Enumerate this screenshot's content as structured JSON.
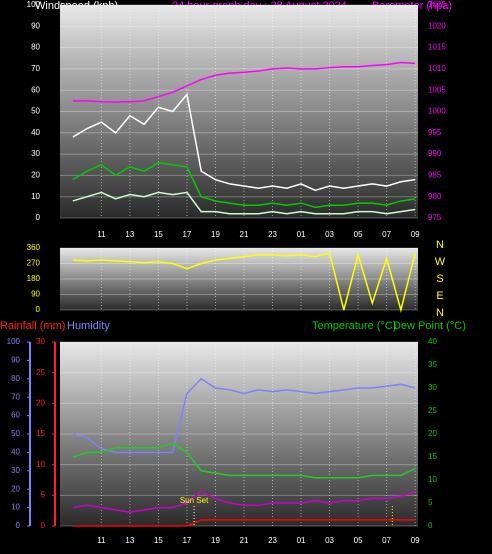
{
  "chart_data": [
    {
      "type": "line",
      "title": "24 hour graph day : 28 August 2024",
      "y_label": "Windspeed (kph)",
      "y2_label": "Barometer (hpa)",
      "x": [
        9,
        10,
        11,
        12,
        13,
        14,
        15,
        16,
        17,
        18,
        19,
        20,
        21,
        22,
        23,
        24,
        25,
        26,
        27,
        28,
        29,
        30,
        31,
        32,
        33
      ],
      "xlim": [
        8.1,
        33.2
      ],
      "xticks": [
        11,
        13,
        15,
        17,
        19,
        21,
        23,
        {
          "value": 25,
          "label": "01"
        },
        {
          "value": 27,
          "label": "03"
        },
        {
          "value": 29,
          "label": "05"
        },
        {
          "value": 31,
          "label": "07"
        },
        {
          "value": 33,
          "label": "09"
        }
      ],
      "ylim": [
        0,
        100
      ],
      "yticks": [
        0,
        10,
        20,
        30,
        40,
        50,
        60,
        70,
        80,
        90,
        100
      ],
      "y2lim": [
        975,
        1025
      ],
      "y2ticks": [
        975,
        980,
        985,
        990,
        995,
        1000,
        1005,
        1010,
        1015,
        1020,
        1025
      ],
      "axis_colors": {
        "y": "#ffffff",
        "y2": "#ff00ff"
      },
      "grid": true,
      "series": [
        {
          "color": "#ffffff",
          "values": [
            38,
            42,
            45,
            40,
            48,
            44,
            52,
            50,
            58,
            22,
            18,
            16,
            15,
            14,
            15,
            14,
            16,
            13,
            15,
            14,
            15,
            16,
            15,
            17,
            18
          ]
        },
        {
          "color": "#00cc00",
          "values": [
            18,
            22,
            25,
            20,
            24,
            22,
            26,
            25,
            24,
            10,
            8,
            7,
            6,
            6,
            7,
            6,
            7,
            5,
            6,
            6,
            7,
            7,
            6,
            8,
            9
          ]
        },
        {
          "color": "#ccffcc",
          "values": [
            8,
            10,
            12,
            9,
            11,
            10,
            12,
            11,
            12,
            3,
            3,
            2,
            2,
            2,
            3,
            2,
            3,
            2,
            2,
            2,
            3,
            3,
            2,
            3,
            4
          ]
        },
        {
          "color": "#ff00ff",
          "axis": "y2",
          "values": [
            1002.5,
            1002.5,
            1002.3,
            1002.2,
            1002.3,
            1002.5,
            1003.5,
            1004.5,
            1006,
            1007.5,
            1008.5,
            1009,
            1009.2,
            1009.5,
            1010,
            1010.2,
            1010,
            1010,
            1010.3,
            1010.5,
            1010.5,
            1010.8,
            1011,
            1011.5,
            1011.3
          ]
        }
      ]
    },
    {
      "type": "line",
      "x": [
        9,
        10,
        11,
        12,
        13,
        14,
        15,
        16,
        17,
        18,
        19,
        20,
        21,
        22,
        23,
        24,
        25,
        26,
        27,
        28,
        29,
        30,
        31,
        32,
        33
      ],
      "xlim": [
        8.1,
        33.2
      ],
      "xticks": [
        11,
        13,
        15,
        17,
        19,
        21,
        23,
        25,
        27,
        29,
        31,
        33
      ],
      "ylim": [
        0,
        360
      ],
      "yticks": [
        0,
        90,
        180,
        270,
        360
      ],
      "axis_colors": {
        "y": "#ffff00"
      },
      "grid": true,
      "compass_labels": [
        "N",
        "W",
        "S",
        "E",
        "N"
      ],
      "series": [
        {
          "color": "#ffff00",
          "values": [
            290,
            285,
            290,
            285,
            280,
            275,
            280,
            270,
            240,
            270,
            290,
            300,
            310,
            320,
            320,
            315,
            320,
            310,
            330,
            0,
            320,
            40,
            300,
            0,
            330
          ]
        }
      ]
    },
    {
      "type": "line",
      "y_label": "Rainfall (mm)",
      "y3_label": "Humidity",
      "y2_label": "Temperature (°C)",
      "y2_label_b": "Dew Point (°C)",
      "x": [
        9,
        10,
        11,
        12,
        13,
        14,
        15,
        16,
        17,
        18,
        19,
        20,
        21,
        22,
        23,
        24,
        25,
        26,
        27,
        28,
        29,
        30,
        31,
        32,
        33
      ],
      "xlim": [
        8.1,
        33.2
      ],
      "xticks": [
        11,
        13,
        15,
        17,
        19,
        21,
        23,
        {
          "value": 25,
          "label": "01"
        },
        {
          "value": 27,
          "label": "03"
        },
        {
          "value": 29,
          "label": "05"
        },
        {
          "value": 31,
          "label": "07"
        },
        {
          "value": 33,
          "label": "09"
        }
      ],
      "ylim": [
        0,
        30
      ],
      "yticks": [
        0,
        5,
        10,
        15,
        20,
        25,
        30
      ],
      "y3lim": [
        0,
        100
      ],
      "y3ticks": [
        0,
        10,
        20,
        30,
        40,
        50,
        60,
        70,
        80,
        90,
        100
      ],
      "y2lim": [
        0,
        40
      ],
      "y2ticks": [
        0,
        5,
        10,
        15,
        20,
        25,
        30,
        35,
        40
      ],
      "axis_colors": {
        "y": "#ff2020",
        "y2": "#00cc00",
        "y3": "#8080ff"
      },
      "grid": true,
      "sunset": {
        "label": "Sun Set",
        "x": 17.5
      },
      "sunrise_x": 31.4,
      "series": [
        {
          "color": "#ff0000",
          "values": [
            0,
            0,
            0,
            0,
            0,
            0,
            0,
            0,
            0,
            1,
            1,
            1,
            1,
            1,
            1,
            1,
            1,
            1,
            1,
            1,
            1,
            1,
            1,
            1,
            1
          ]
        },
        {
          "color": "#8080ff",
          "axis": "y3",
          "values": [
            50,
            48,
            42,
            40,
            40,
            40,
            40,
            40,
            72,
            80,
            75,
            74,
            72,
            74,
            73,
            74,
            73,
            72,
            73,
            74,
            75,
            75,
            76,
            77,
            75
          ]
        },
        {
          "color": "#22cc22",
          "axis": "y2",
          "values": [
            15,
            16,
            16,
            17,
            17,
            17,
            17,
            18,
            16,
            12,
            11.5,
            11,
            11,
            11,
            11,
            11,
            11,
            10.5,
            10.5,
            10.5,
            10.5,
            11,
            11,
            11,
            12.5
          ]
        },
        {
          "color": "#cc00cc",
          "axis": "y2",
          "values": [
            4,
            4.5,
            4,
            3.5,
            3,
            3.5,
            4,
            4,
            5,
            7.5,
            6,
            5,
            4.5,
            4.5,
            5,
            5,
            5,
            5.5,
            5,
            5.5,
            5.5,
            6,
            6,
            6.5,
            7.5
          ]
        }
      ]
    }
  ]
}
